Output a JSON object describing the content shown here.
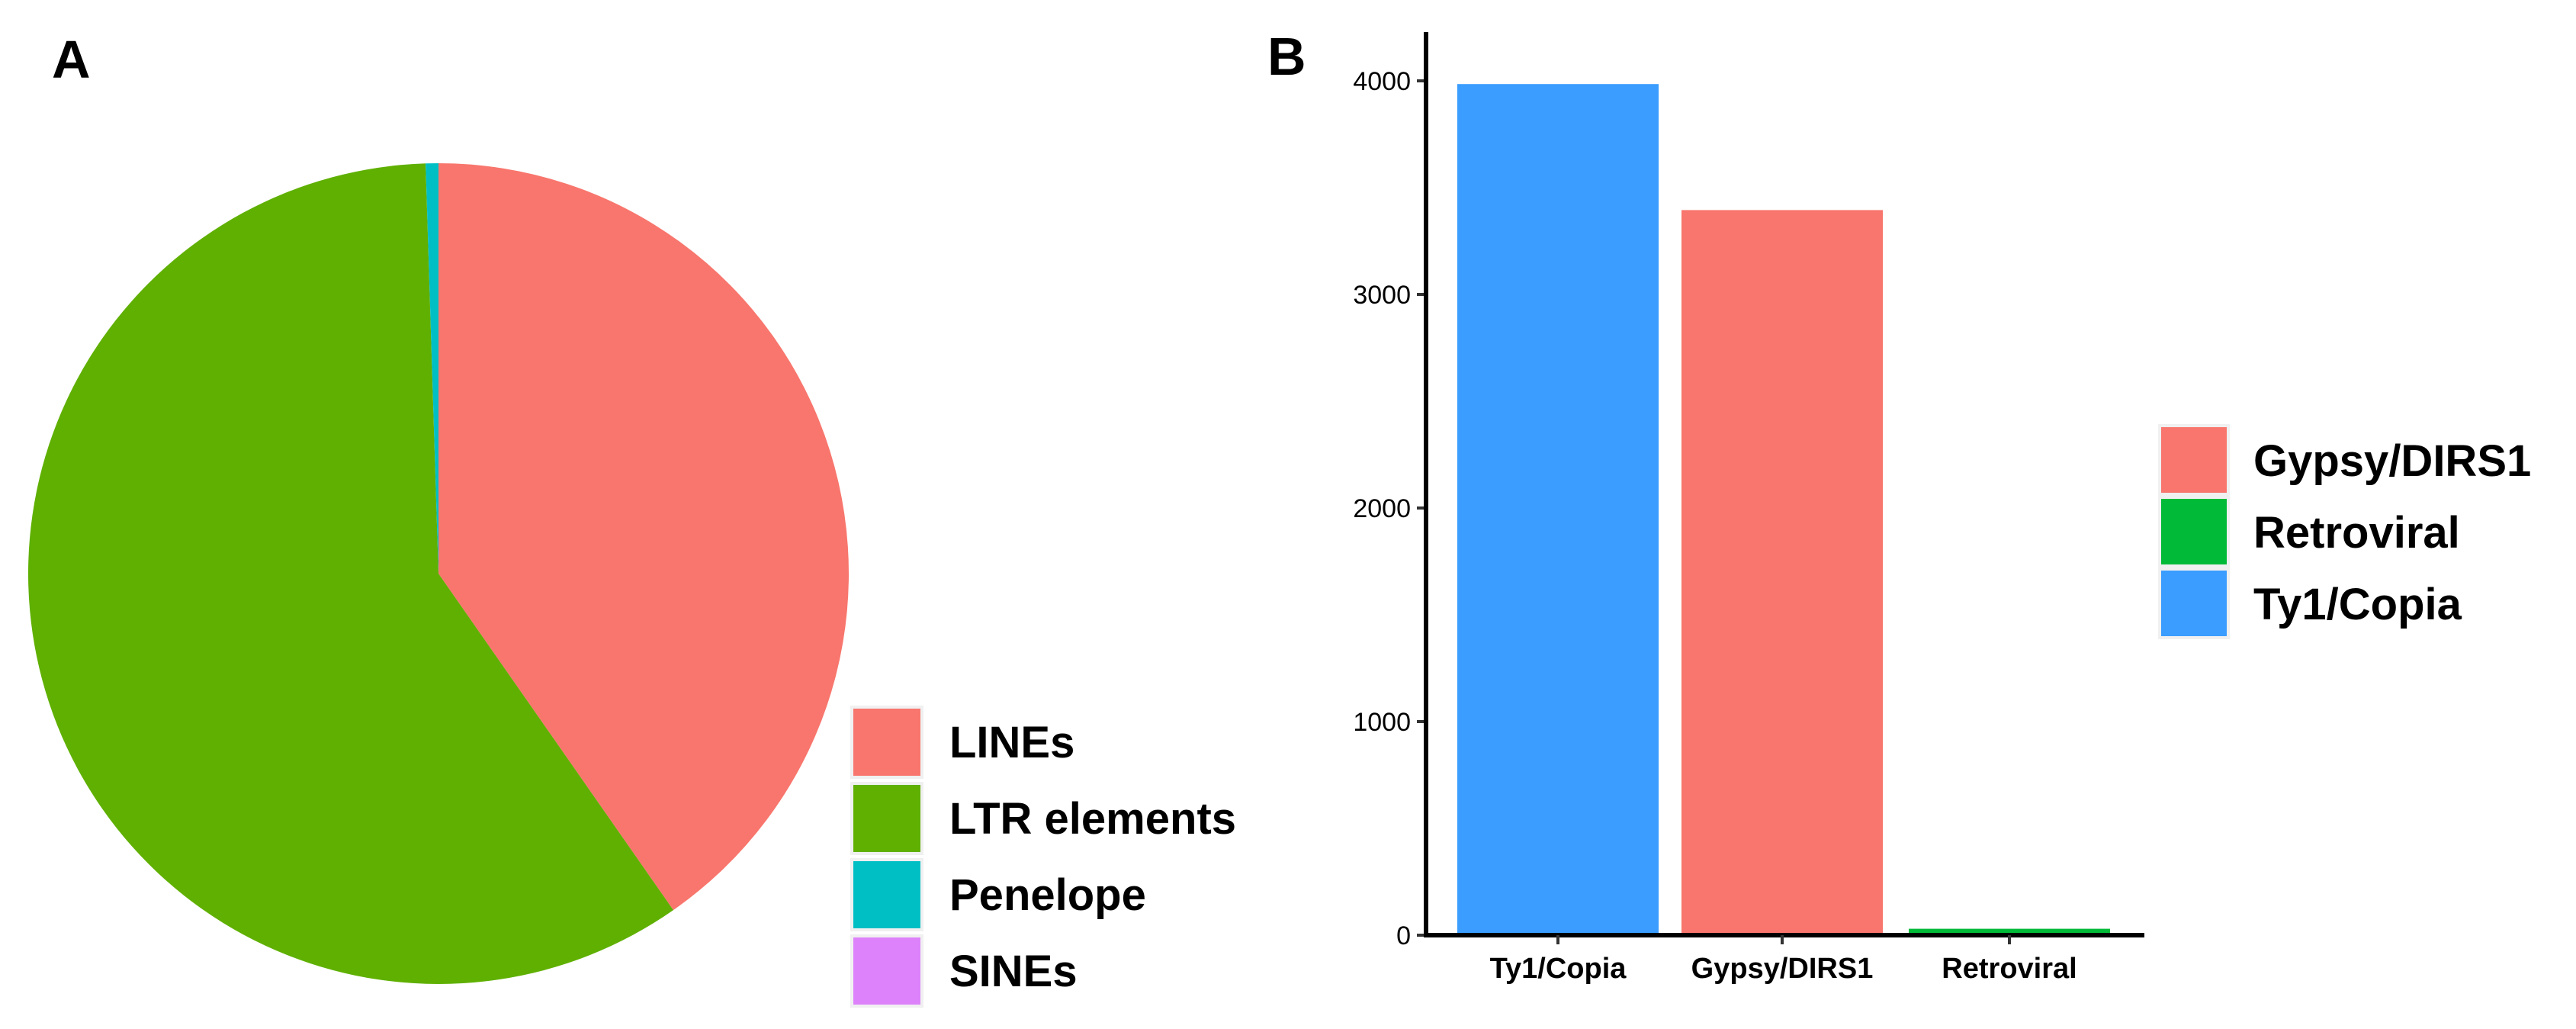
{
  "chart_data": [
    {
      "type": "pie",
      "panel_label": "A",
      "title": "",
      "categories": [
        "LINEs",
        "LTR elements",
        "Penelope",
        "SINEs"
      ],
      "values": [
        40.3,
        59.2,
        0.5,
        0.0
      ],
      "colors": [
        "#F8766D",
        "#5FB000",
        "#00BFC4",
        "#DD82FA"
      ],
      "legend": {
        "placement": "right",
        "entries": [
          "LINEs",
          "LTR elements",
          "Penelope",
          "SINEs"
        ]
      }
    },
    {
      "type": "bar",
      "panel_label": "B",
      "title": "",
      "xlabel": "",
      "ylabel": "",
      "categories": [
        "Ty1/Copia",
        "Gypsy/DIRS1",
        "Retroviral"
      ],
      "values": [
        3985,
        3395,
        30
      ],
      "colors": [
        "#3A9DFF",
        "#F8766D",
        "#00BA38"
      ],
      "ylim": [
        0,
        4200
      ],
      "yticks": [
        0,
        1000,
        2000,
        3000,
        4000
      ],
      "legend": {
        "placement": "right",
        "entries": [
          {
            "label": "Gypsy/DIRS1",
            "color": "#F8766D"
          },
          {
            "label": "Retroviral",
            "color": "#00BA38"
          },
          {
            "label": "Ty1/Copia",
            "color": "#3A9DFF"
          }
        ]
      }
    }
  ]
}
